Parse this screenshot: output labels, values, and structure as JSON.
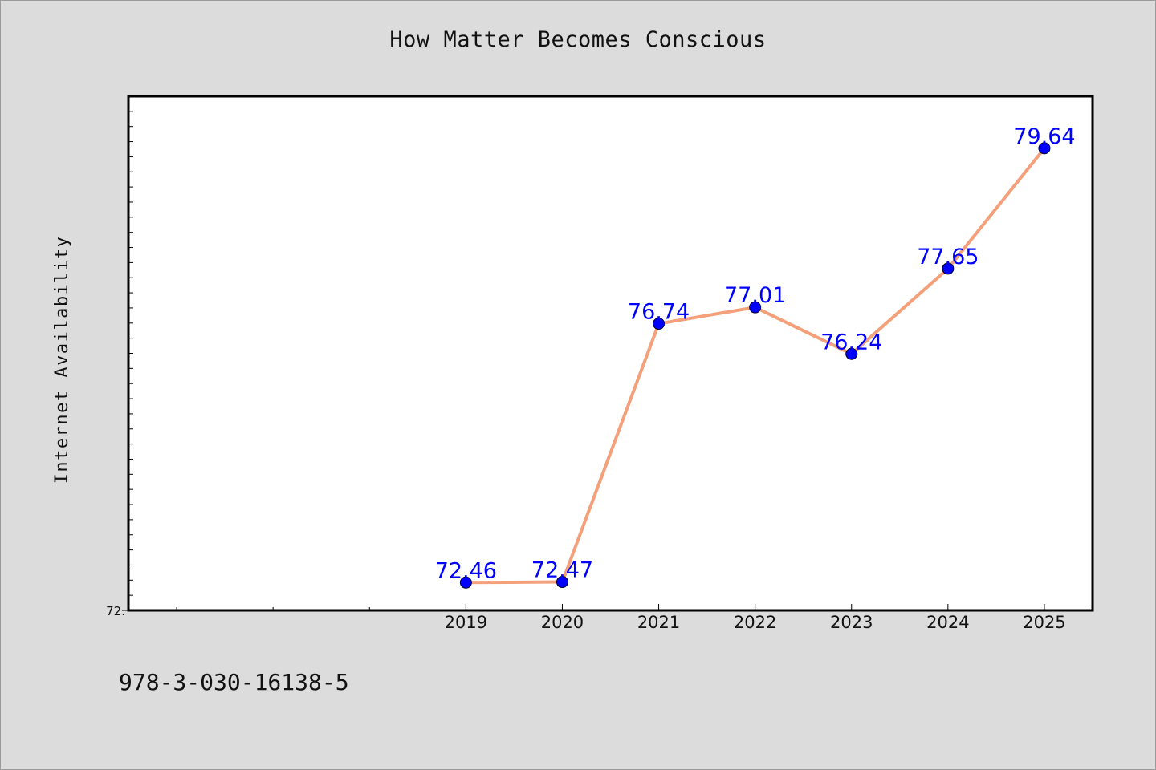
{
  "page": {
    "title": "How Matter Becomes Conscious",
    "footer_text": "978-3-030-16138-5"
  },
  "chart_data": {
    "type": "line",
    "title": "How Matter Becomes Conscious",
    "xlabel": "",
    "ylabel": "Internet Availability",
    "x": [
      "2019",
      "2020",
      "2021",
      "2022",
      "2023",
      "2024",
      "2025"
    ],
    "series": [
      {
        "values": [
          72.46,
          72.47,
          76.74,
          77.01,
          76.24,
          77.65,
          79.64
        ],
        "labels": [
          "72.46",
          "72.47",
          "76.74",
          "77.01",
          "76.24",
          "77.65",
          "79.64"
        ]
      }
    ],
    "ylim": [
      72.0,
      80.5
    ],
    "xlim": [
      2015.5,
      2025.5
    ],
    "y_tick_label": "72.",
    "grid": false,
    "line_color": "#f4a07a",
    "marker_color": "#0000ff",
    "label_color": "#0000ff"
  }
}
